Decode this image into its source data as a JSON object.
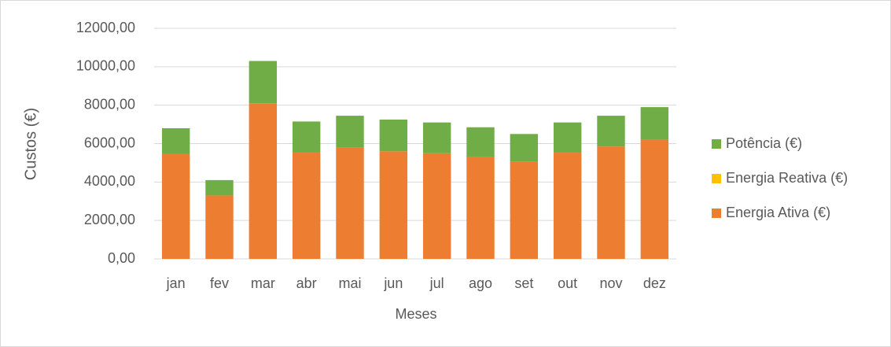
{
  "chart_data": {
    "type": "stacked_bar",
    "x_label": "Meses",
    "y_label": "Custos (€)",
    "categories": [
      "jan",
      "fev",
      "mar",
      "abr",
      "mai",
      "jun",
      "jul",
      "ago",
      "set",
      "out",
      "nov",
      "dez"
    ],
    "series": [
      {
        "name": "Energia Ativa (€)",
        "color": "#ed7d31",
        "values": [
          5450,
          3300,
          8100,
          5550,
          5800,
          5600,
          5500,
          5300,
          5050,
          5550,
          5850,
          6200
        ]
      },
      {
        "name": "Energia Reativa (€)",
        "color": "#ffc000",
        "values": [
          0,
          0,
          0,
          0,
          0,
          0,
          0,
          0,
          0,
          0,
          0,
          0
        ]
      },
      {
        "name": "Potência (€)",
        "color": "#70ad47",
        "values": [
          1350,
          800,
          2200,
          1600,
          1650,
          1650,
          1600,
          1550,
          1450,
          1550,
          1600,
          1700
        ]
      }
    ],
    "ylim": [
      0,
      12000
    ],
    "yticks": [
      {
        "value": 0,
        "label": "0,00"
      },
      {
        "value": 2000,
        "label": "2000,00"
      },
      {
        "value": 4000,
        "label": "4000,00"
      },
      {
        "value": 6000,
        "label": "6000,00"
      },
      {
        "value": 8000,
        "label": "8000,00"
      },
      {
        "value": 10000,
        "label": "10000,00"
      },
      {
        "value": 12000,
        "label": "12000,00"
      }
    ],
    "grid": true,
    "legend": "right"
  }
}
